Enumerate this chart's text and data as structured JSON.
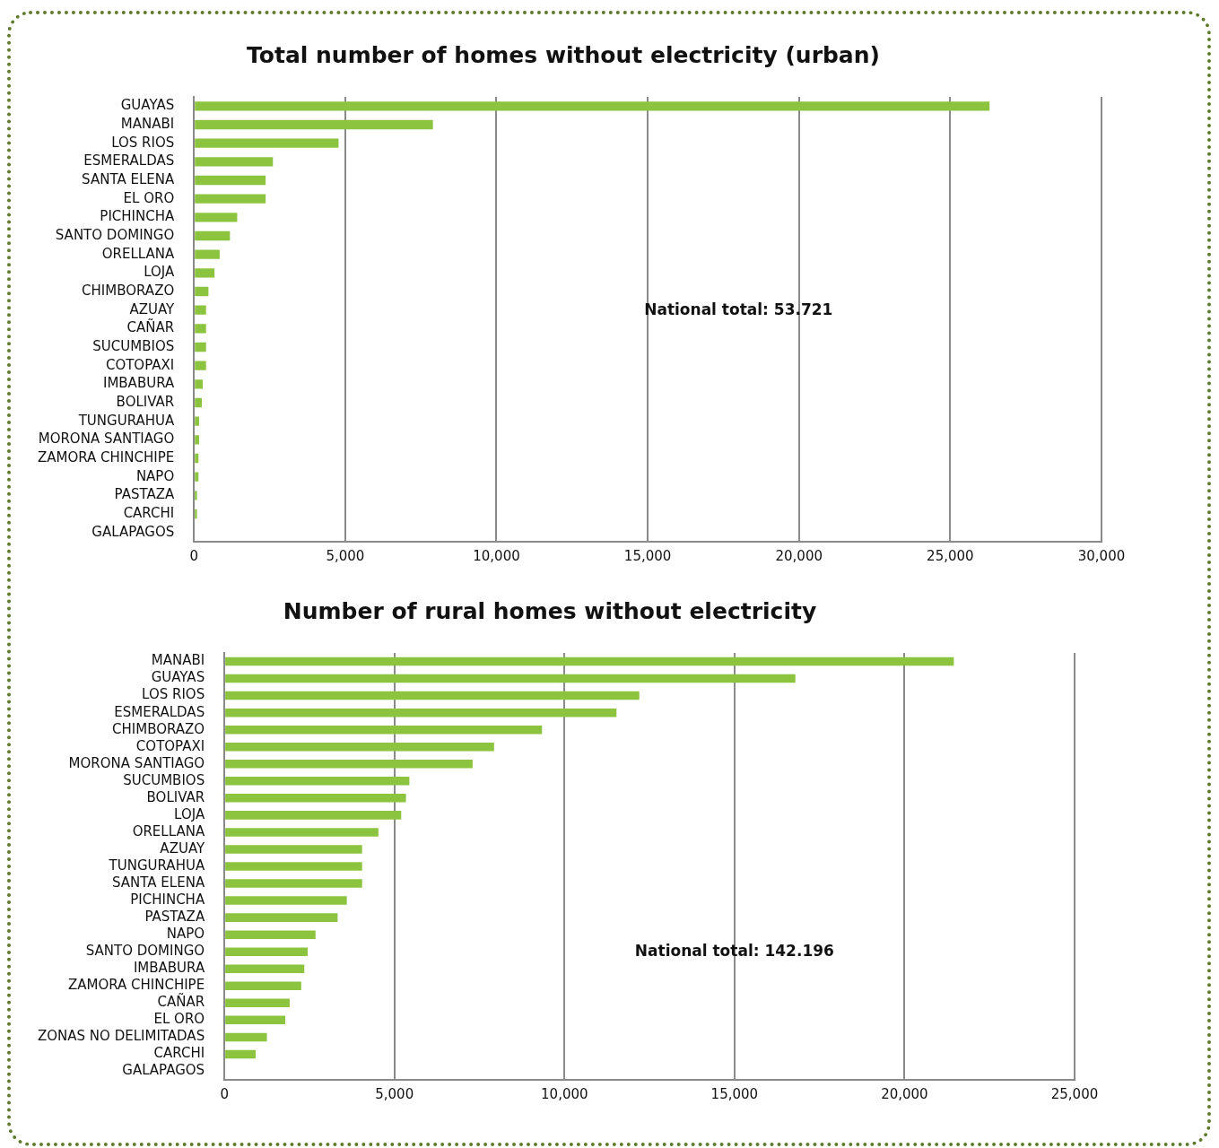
{
  "chart_data": [
    {
      "type": "bar",
      "orientation": "horizontal",
      "title": "Total number of homes without electricity (urban)",
      "categories": [
        "GUAYAS",
        "MANABI",
        "LOS RIOS",
        "ESMERALDAS",
        "SANTA ELENA",
        "EL ORO",
        "PICHINCHA",
        "SANTO DOMINGO",
        "ORELLANA",
        "LOJA",
        "CHIMBORAZO",
        "AZUAY",
        "CAÑAR",
        "SUCUMBIOS",
        "COTOPAXI",
        "IMBABURA",
        "BOLIVAR",
        "TUNGURAHUA",
        "MORONA SANTIAGO",
        "ZAMORA CHINCHIPE",
        "NAPO",
        "PASTAZA",
        "CARCHI",
        "GALAPAGOS"
      ],
      "values": [
        26300,
        7900,
        4780,
        2610,
        2370,
        2370,
        1430,
        1190,
        850,
        680,
        480,
        400,
        400,
        400,
        400,
        290,
        260,
        170,
        170,
        150,
        150,
        100,
        100,
        0
      ],
      "color": "#8cc43f",
      "xlim": [
        0,
        30000
      ],
      "xticks": [
        {
          "value": 0,
          "label": "0"
        },
        {
          "value": 5000,
          "label": "5,000"
        },
        {
          "value": 10000,
          "label": "10,000"
        },
        {
          "value": 15000,
          "label": "15,000"
        },
        {
          "value": 20000,
          "label": "20,000"
        },
        {
          "value": 25000,
          "label": "25,000"
        },
        {
          "value": 30000,
          "label": "30,000"
        }
      ],
      "grid": "x",
      "annotations": [
        "National total: 53.721"
      ]
    },
    {
      "type": "bar",
      "orientation": "horizontal",
      "title": "Number of rural homes without electricity",
      "categories": [
        "MANABI",
        "GUAYAS",
        "LOS RIOS",
        "ESMERALDAS",
        "CHIMBORAZO",
        "COTOPAXI",
        "MORONA SANTIAGO",
        "SUCUMBIOS",
        "BOLIVAR",
        "LOJA",
        "ORELLANA",
        "AZUAY",
        "TUNGURAHUA",
        "SANTA ELENA",
        "PICHINCHA",
        "PASTAZA",
        "NAPO",
        "SANTO DOMINGO",
        "IMBABURA",
        "ZAMORA CHINCHIPE",
        "CAÑAR",
        "EL ORO",
        "ZONAS NO DELIMITADAS",
        "CARCHI",
        "GALAPAGOS"
      ],
      "values": [
        21450,
        16790,
        12200,
        11530,
        9340,
        7930,
        7300,
        5440,
        5340,
        5200,
        4530,
        4050,
        4050,
        4050,
        3600,
        3330,
        2680,
        2450,
        2350,
        2260,
        1920,
        1790,
        1250,
        920,
        0
      ],
      "color": "#8cc43f",
      "xlim": [
        0,
        25000
      ],
      "xticks": [
        {
          "value": 0,
          "label": "0"
        },
        {
          "value": 5000,
          "label": "5,000"
        },
        {
          "value": 10000,
          "label": "10,000"
        },
        {
          "value": 15000,
          "label": "15,000"
        },
        {
          "value": 20000,
          "label": "20,000"
        },
        {
          "value": 25000,
          "label": "25,000"
        }
      ],
      "grid": "x",
      "annotations": [
        "National total: 142.196"
      ]
    }
  ]
}
